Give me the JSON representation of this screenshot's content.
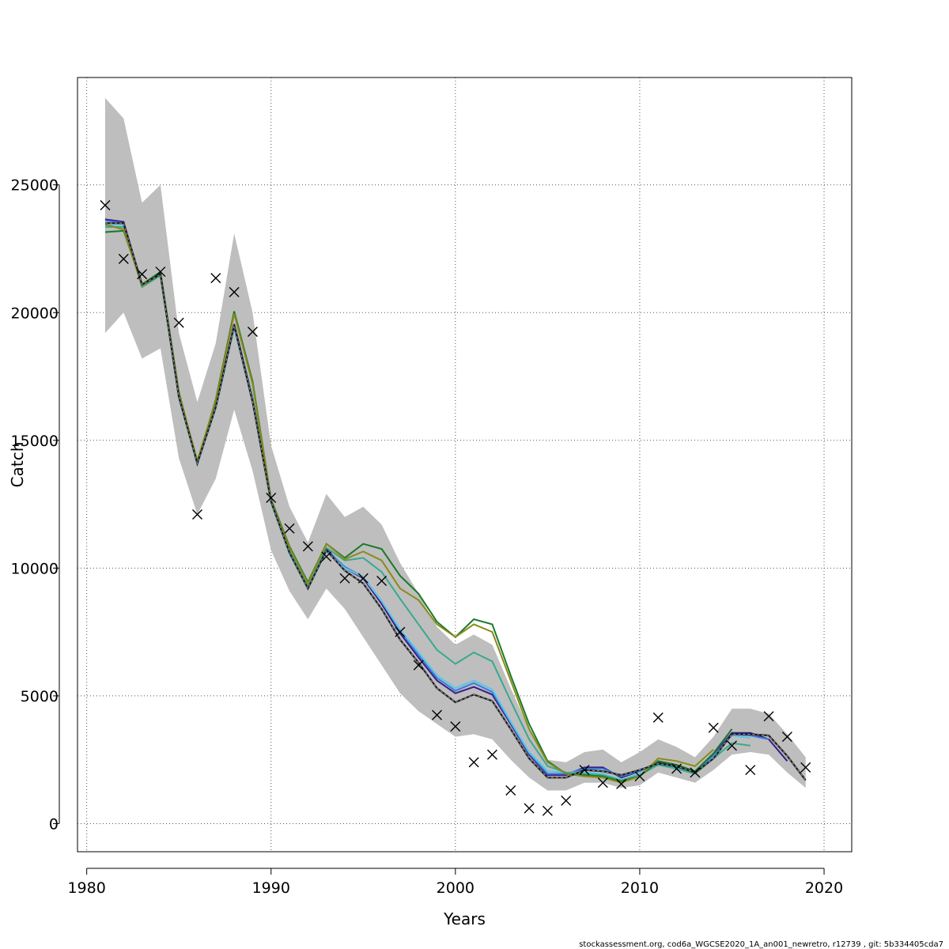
{
  "chart_data": {
    "type": "line",
    "xlabel": "Years",
    "ylabel": "Catch",
    "xlim": [
      1979.5,
      2021.5
    ],
    "ylim": [
      -1100,
      29200
    ],
    "xticks": [
      1980,
      1990,
      2000,
      2010,
      2020
    ],
    "yticks": [
      0,
      5000,
      10000,
      15000,
      20000,
      25000
    ],
    "grid": true,
    "legend": "none",
    "footer": "stockassessment.org, cod6a_WGCSE2020_1A_an001_newretro, r12739 , git: 5b334405cda7",
    "confidence_band": {
      "color": "#bebebe",
      "x": [
        1981,
        1982,
        1983,
        1984,
        1985,
        1986,
        1987,
        1988,
        1989,
        1990,
        1991,
        1992,
        1993,
        1994,
        1995,
        1996,
        1997,
        1998,
        1999,
        2000,
        2001,
        2002,
        2003,
        2004,
        2005,
        2006,
        2007,
        2008,
        2009,
        2010,
        2011,
        2012,
        2013,
        2014,
        2015,
        2016,
        2017,
        2018,
        2019
      ],
      "upper": [
        28400,
        27600,
        24300,
        25000,
        19200,
        16500,
        18800,
        23100,
        20000,
        14800,
        12400,
        11000,
        12900,
        12000,
        12400,
        11700,
        10200,
        9000,
        7700,
        7000,
        7400,
        7000,
        5300,
        3700,
        2500,
        2400,
        2800,
        2900,
        2400,
        2800,
        3300,
        3000,
        2600,
        3400,
        4500,
        4500,
        4300,
        3500,
        2600
      ],
      "lower": [
        19200,
        20000,
        18200,
        18600,
        14300,
        12100,
        13500,
        16200,
        13800,
        10700,
        9100,
        8000,
        9200,
        8400,
        7300,
        6200,
        5100,
        4400,
        3900,
        3400,
        3500,
        3300,
        2500,
        1800,
        1300,
        1300,
        1600,
        1600,
        1400,
        1500,
        2000,
        1800,
        1600,
        2100,
        2700,
        2800,
        2700,
        2000,
        1400
      ]
    },
    "observed": {
      "marker": "x",
      "color": "#000000",
      "x": [
        1981,
        1982,
        1983,
        1984,
        1985,
        1986,
        1987,
        1988,
        1989,
        1990,
        1991,
        1992,
        1993,
        1994,
        1995,
        1996,
        1997,
        1998,
        1999,
        2000,
        2001,
        2002,
        2003,
        2004,
        2005,
        2006,
        2007,
        2008,
        2009,
        2010,
        2011,
        2012,
        2013,
        2014,
        2015,
        2016,
        2017,
        2018,
        2019
      ],
      "y": [
        24200,
        22100,
        21500,
        21600,
        19600,
        12100,
        21350,
        20800,
        19250,
        12750,
        11550,
        10850,
        10450,
        9600,
        9600,
        9500,
        7500,
        6200,
        4250,
        3800,
        2400,
        2700,
        1300,
        600,
        500,
        900,
        2100,
        1600,
        1550,
        1850,
        4150,
        2150,
        2000,
        3750,
        3050,
        2100,
        4200,
        3400,
        2200
      ]
    },
    "series": [
      {
        "color": "#1a1a1a",
        "dashed": true,
        "x": [
          1981,
          1982,
          1983,
          1984,
          1985,
          1986,
          1987,
          1988,
          1989,
          1990,
          1991,
          1992,
          1993,
          1994,
          1995,
          1996,
          1997,
          1998,
          1999,
          2000,
          2001,
          2002,
          2003,
          2004,
          2005,
          2006,
          2007,
          2008,
          2009,
          2010,
          2011,
          2012,
          2013,
          2014,
          2015,
          2016,
          2017,
          2018,
          2019
        ],
        "values": [
          23500,
          23500,
          21100,
          21500,
          16700,
          14100,
          16300,
          19500,
          16500,
          12600,
          10600,
          9200,
          10700,
          9900,
          9400,
          8400,
          7200,
          6300,
          5300,
          4750,
          5050,
          4800,
          3700,
          2550,
          1800,
          1800,
          2100,
          2050,
          1900,
          2100,
          2350,
          2250,
          2000,
          2550,
          3500,
          3500,
          3450,
          2650,
          1700
        ]
      },
      {
        "color": "#3a1a8c",
        "x": [
          1981,
          1982,
          1983,
          1984,
          1985,
          1986,
          1987,
          1988,
          1989,
          1990,
          1991,
          1992,
          1993,
          1994,
          1995,
          1996,
          1997,
          1998,
          1999,
          2000,
          2001,
          2002,
          2003,
          2004,
          2005,
          2006,
          2007,
          2008,
          2009,
          2010,
          2011,
          2012,
          2013,
          2014,
          2015,
          2016,
          2017,
          2018
        ],
        "values": [
          23650,
          23550,
          21100,
          21550,
          16750,
          14150,
          16350,
          19550,
          16650,
          12650,
          10650,
          9300,
          10750,
          10000,
          9600,
          8600,
          7450,
          6500,
          5600,
          5100,
          5350,
          5050,
          3900,
          2700,
          1900,
          1900,
          2200,
          2200,
          1800,
          2050,
          2400,
          2250,
          2050,
          2700,
          3550,
          3550,
          3300,
          2450
        ]
      },
      {
        "color": "#3b7dd8",
        "x": [
          1981,
          1982,
          1983,
          1984,
          1985,
          1986,
          1987,
          1988,
          1989,
          1990,
          1991,
          1992,
          1993,
          1994,
          1995,
          1996,
          1997,
          1998,
          1999,
          2000,
          2001,
          2002,
          2003,
          2004,
          2005,
          2006,
          2007,
          2008,
          2009,
          2010,
          2011,
          2012,
          2013,
          2014,
          2015,
          2016,
          2017
        ],
        "values": [
          23600,
          23500,
          21050,
          21500,
          16700,
          14100,
          16300,
          19450,
          16600,
          12600,
          10650,
          9250,
          10700,
          10050,
          9650,
          8700,
          7550,
          6600,
          5700,
          5200,
          5500,
          5150,
          3950,
          2750,
          1950,
          1950,
          2150,
          2150,
          1850,
          2050,
          2350,
          2200,
          2000,
          2650,
          3500,
          3450,
          3300
        ]
      },
      {
        "color": "#5bc6e8",
        "x": [
          1981,
          1982,
          1983,
          1984,
          1985,
          1986,
          1987,
          1988,
          1989,
          1990,
          1991,
          1992,
          1993,
          1994,
          1995,
          1996,
          1997,
          1998,
          1999,
          2000,
          2001,
          2002,
          2003,
          2004,
          2005,
          2006,
          2007,
          2008,
          2009,
          2010,
          2011,
          2012,
          2013,
          2014,
          2015,
          2016
        ],
        "values": [
          23400,
          23450,
          21000,
          21450,
          16650,
          14050,
          16250,
          19400,
          16500,
          12550,
          10550,
          9200,
          10650,
          10000,
          9650,
          8700,
          7600,
          6700,
          5800,
          5300,
          5600,
          5250,
          4000,
          2800,
          2050,
          2000,
          2000,
          1950,
          1700,
          1950,
          2300,
          2150,
          1950,
          2600,
          3450,
          3350
        ]
      },
      {
        "color": "#3aa98e",
        "x": [
          1981,
          1982,
          1983,
          1984,
          1985,
          1986,
          1987,
          1988,
          1989,
          1990,
          1991,
          1992,
          1993,
          1994,
          1995,
          1996,
          1997,
          1998,
          1999,
          2000,
          2001,
          2002,
          2003,
          2004,
          2005,
          2006,
          2007,
          2008,
          2009,
          2010,
          2011,
          2012,
          2013,
          2014,
          2015,
          2016
        ],
        "values": [
          23350,
          23350,
          21000,
          21450,
          16700,
          14100,
          16300,
          19450,
          16600,
          12600,
          10650,
          9300,
          10800,
          10300,
          10400,
          9850,
          8800,
          7800,
          6800,
          6250,
          6700,
          6350,
          4800,
          3300,
          2250,
          2000,
          1950,
          1900,
          1700,
          1900,
          2300,
          2150,
          1950,
          2550,
          3150,
          3050
        ]
      },
      {
        "color": "#1a7a2a",
        "x": [
          1981,
          1982,
          1983,
          1984,
          1985,
          1986,
          1987,
          1988,
          1989,
          1990,
          1991,
          1992,
          1993,
          1994,
          1995,
          1996,
          1997,
          1998,
          1999,
          2000,
          2001,
          2002,
          2003,
          2004,
          2005,
          2006,
          2007,
          2008,
          2009,
          2010,
          2011,
          2012,
          2013,
          2014,
          2015
        ],
        "values": [
          23150,
          23200,
          21100,
          21600,
          16900,
          14100,
          16600,
          20050,
          17300,
          12700,
          10850,
          9450,
          10950,
          10400,
          10950,
          10750,
          9700,
          9000,
          7900,
          7300,
          8000,
          7800,
          5800,
          3900,
          2450,
          1950,
          1900,
          1850,
          1650,
          1850,
          2450,
          2300,
          2050,
          2750,
          3700
        ]
      },
      {
        "color": "#8a8a1a",
        "x": [
          1981,
          1982,
          1983,
          1984,
          1985,
          1986,
          1987,
          1988,
          1989,
          1990,
          1991,
          1992,
          1993,
          1994,
          1995,
          1996,
          1997,
          1998,
          1999,
          2000,
          2001,
          2002,
          2003,
          2004,
          2005,
          2006,
          2007,
          2008,
          2009,
          2010,
          2011,
          2012,
          2013,
          2014
        ],
        "values": [
          23450,
          23250,
          21050,
          21500,
          16850,
          14200,
          16550,
          19950,
          17200,
          12650,
          10800,
          9400,
          10950,
          10350,
          10650,
          10300,
          9200,
          8750,
          7800,
          7300,
          7800,
          7500,
          5600,
          3700,
          2400,
          1950,
          1850,
          1800,
          1600,
          1850,
          2550,
          2450,
          2250,
          2900
        ]
      }
    ]
  }
}
